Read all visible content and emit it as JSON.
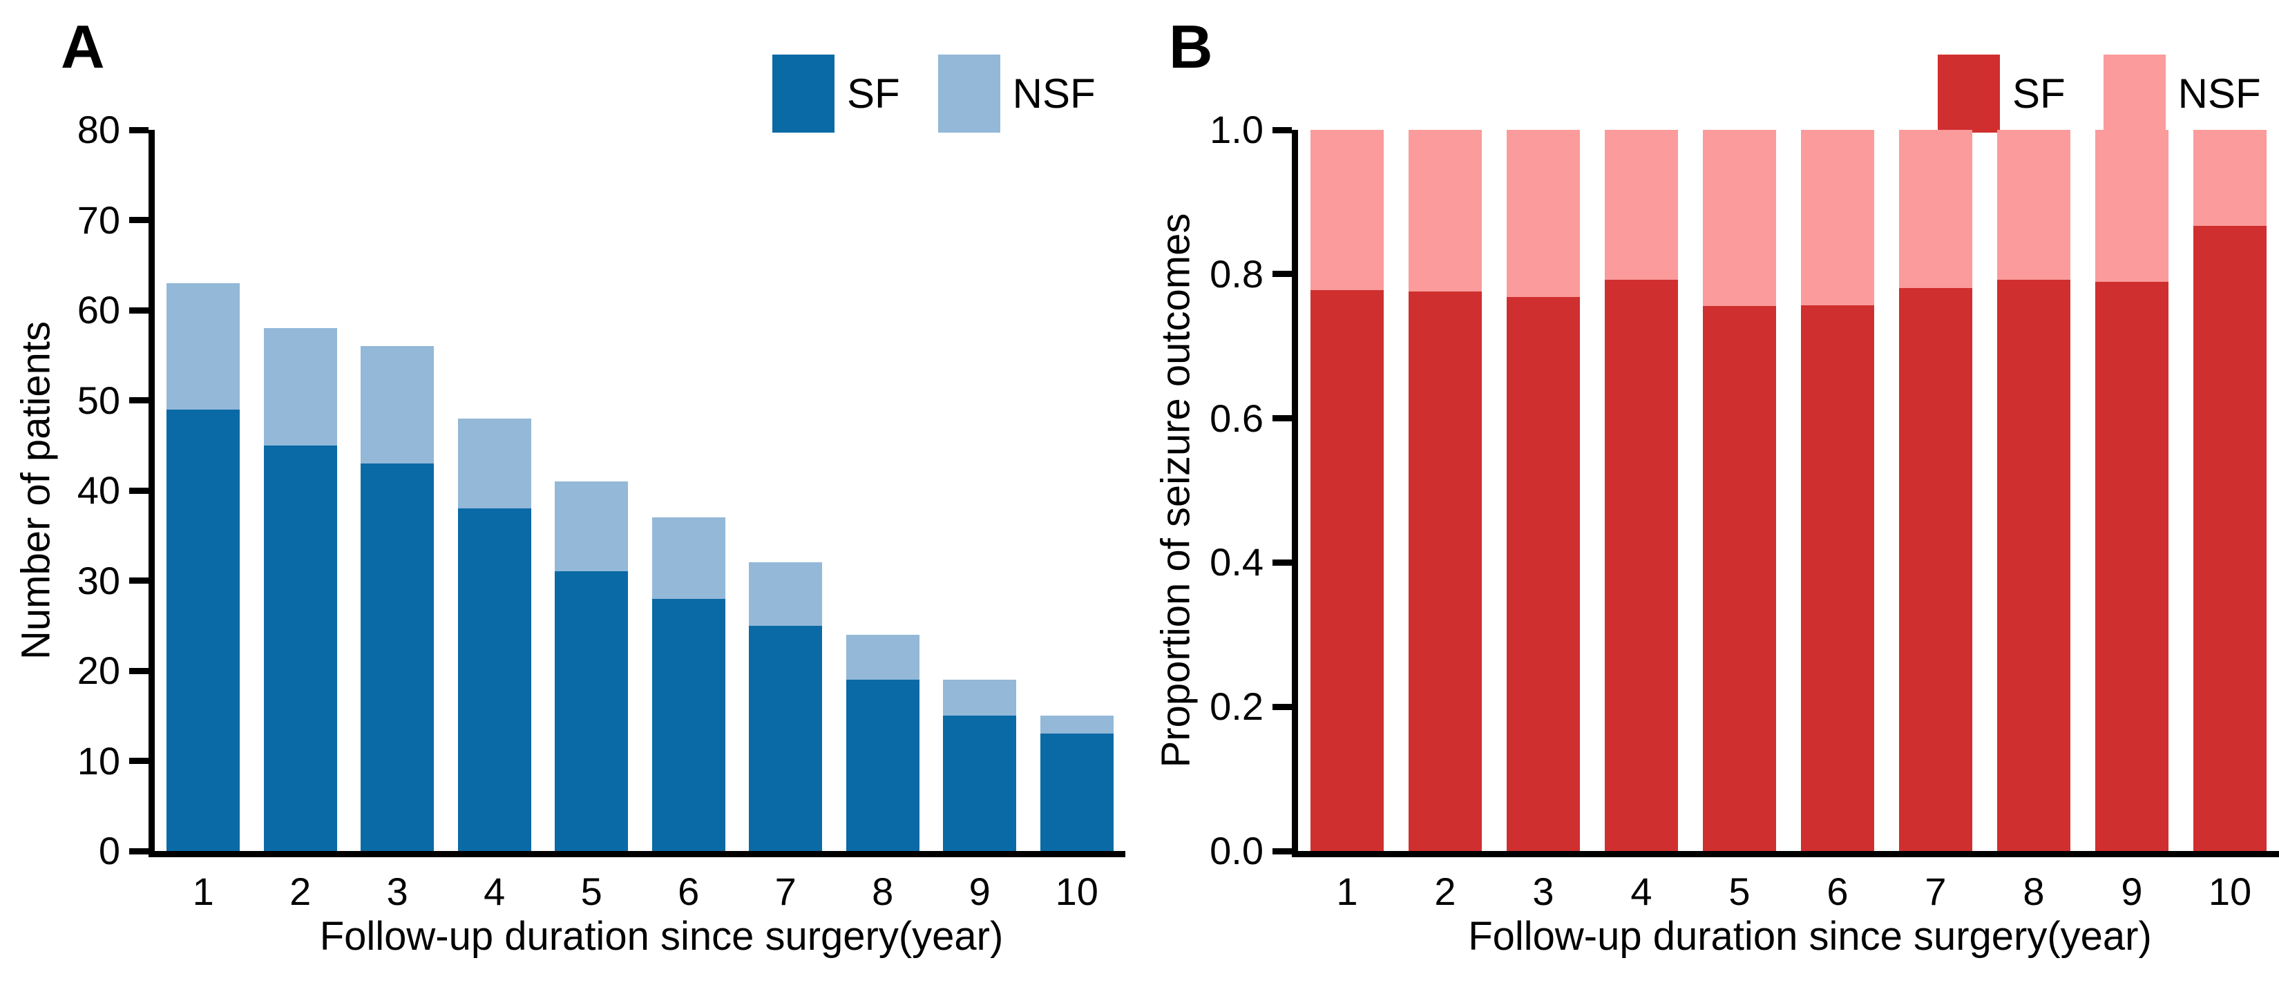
{
  "figure": {
    "background": "#ffffff",
    "text_color": "#000000",
    "axis_color": "#000000"
  },
  "panels": [
    {
      "label": "A",
      "ylabel": "Number of patients",
      "xlabel": "Follow-up duration since surgery(year)",
      "legend": [
        {
          "label": "SF",
          "color": "#0A6AA6"
        },
        {
          "label": "NSF",
          "color": "#93B8D8"
        }
      ]
    },
    {
      "label": "B",
      "ylabel": "Proportion of seizure outcomes",
      "xlabel": "Follow-up duration since surgery(year)",
      "legend": [
        {
          "label": "SF",
          "color": "#D02F2F"
        },
        {
          "label": "NSF",
          "color": "#FB9B9B"
        }
      ]
    }
  ],
  "chart_data": [
    {
      "panel": "A",
      "type": "bar",
      "stacked": true,
      "categories": [
        "1",
        "2",
        "3",
        "4",
        "5",
        "6",
        "7",
        "8",
        "9",
        "10"
      ],
      "series": [
        {
          "name": "SF",
          "color": "#0A6AA6",
          "values": [
            49,
            45,
            43,
            38,
            31,
            28,
            25,
            19,
            15,
            13
          ]
        },
        {
          "name": "NSF",
          "color": "#93B8D8",
          "values": [
            14,
            13,
            13,
            10,
            10,
            9,
            7,
            5,
            4,
            2
          ]
        }
      ],
      "totals": [
        63,
        58,
        56,
        48,
        41,
        37,
        32,
        24,
        19,
        15
      ],
      "xlabel": "Follow-up duration since surgery(year)",
      "ylabel": "Number of patients",
      "ylim": [
        0,
        80
      ],
      "yticks": [
        {
          "v": 0,
          "label": "0"
        },
        {
          "v": 10,
          "label": "10"
        },
        {
          "v": 20,
          "label": "20"
        },
        {
          "v": 30,
          "label": "30"
        },
        {
          "v": 40,
          "label": "40"
        },
        {
          "v": 50,
          "label": "50"
        },
        {
          "v": 60,
          "label": "60"
        },
        {
          "v": 70,
          "label": "70"
        },
        {
          "v": 80,
          "label": "80"
        }
      ],
      "grid": false,
      "legend_position": "top-right"
    },
    {
      "panel": "B",
      "type": "bar",
      "stacked": true,
      "categories": [
        "1",
        "2",
        "3",
        "4",
        "5",
        "6",
        "7",
        "8",
        "9",
        "10"
      ],
      "series": [
        {
          "name": "SF",
          "color": "#D02F2F",
          "values": [
            0.778,
            0.776,
            0.768,
            0.792,
            0.756,
            0.757,
            0.781,
            0.792,
            0.789,
            0.867
          ]
        },
        {
          "name": "NSF",
          "color": "#FB9B9B",
          "values": [
            0.222,
            0.224,
            0.232,
            0.208,
            0.244,
            0.243,
            0.219,
            0.208,
            0.211,
            0.133
          ]
        }
      ],
      "totals": [
        1.0,
        1.0,
        1.0,
        1.0,
        1.0,
        1.0,
        1.0,
        1.0,
        1.0,
        1.0
      ],
      "xlabel": "Follow-up duration since surgery(year)",
      "ylabel": "Proportion of seizure outcomes",
      "ylim": [
        0,
        1.0
      ],
      "yticks": [
        {
          "v": 0.0,
          "label": "0.0"
        },
        {
          "v": 0.2,
          "label": "0.2"
        },
        {
          "v": 0.4,
          "label": "0.4"
        },
        {
          "v": 0.6,
          "label": "0.6"
        },
        {
          "v": 0.8,
          "label": "0.8"
        },
        {
          "v": 1.0,
          "label": "1.0"
        }
      ],
      "grid": false,
      "legend_position": "top-right"
    }
  ]
}
